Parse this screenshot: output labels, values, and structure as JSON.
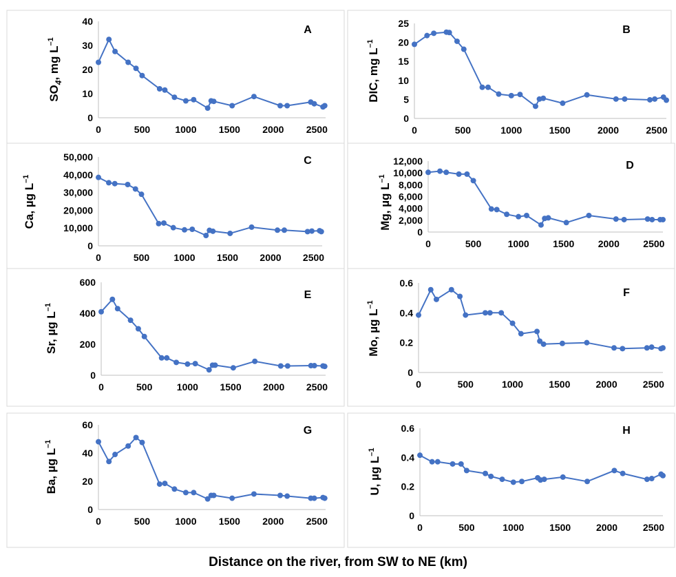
{
  "figure": {
    "x_axis_title": "Distance on the river, from SW to NE (km)"
  },
  "colors": {
    "series": "#4472C4",
    "frame": "#d9d9d9",
    "axis": "#bfbfbf",
    "text": "#000000"
  },
  "chart_data": [
    {
      "type": "line",
      "panel": "A",
      "ylabel": {
        "base": "SO",
        "sub": "4",
        "rest": ", mg L",
        "sup": "–1"
      },
      "ylim": [
        0,
        40
      ],
      "yticks": [
        "0",
        "10",
        "20",
        "30",
        "40"
      ],
      "ytick_values": [
        0,
        10,
        20,
        30,
        40
      ],
      "xlim": [
        0,
        2600
      ],
      "xticks": [
        "0",
        "500",
        "1000",
        "1500",
        "2000",
        "2500"
      ],
      "xtick_values": [
        0,
        500,
        1000,
        1500,
        2000,
        2500
      ],
      "x": [
        0,
        120,
        190,
        340,
        430,
        500,
        700,
        760,
        870,
        1000,
        1090,
        1250,
        1290,
        1320,
        1530,
        1780,
        2080,
        2160,
        2430,
        2470,
        2570,
        2590
      ],
      "y": [
        23,
        32.5,
        27.5,
        23,
        20.5,
        17.5,
        12,
        11.5,
        8.5,
        7,
        7.5,
        4,
        7,
        6.8,
        5,
        8.8,
        5,
        5,
        6.5,
        5.8,
        4.5,
        5
      ]
    },
    {
      "type": "line",
      "panel": "B",
      "ylabel": {
        "base": "DIC, mg L",
        "sup": "–1"
      },
      "ylim": [
        0,
        25
      ],
      "yticks": [
        "0",
        "5",
        "10",
        "15",
        "20",
        "25"
      ],
      "ytick_values": [
        0,
        5,
        10,
        15,
        20,
        25
      ],
      "xlim": [
        0,
        2600
      ],
      "xticks": [
        "0",
        "500",
        "1000",
        "1500",
        "2000",
        "2500"
      ],
      "xtick_values": [
        0,
        500,
        1000,
        1500,
        2000,
        2500
      ],
      "x": [
        0,
        130,
        200,
        330,
        360,
        440,
        510,
        700,
        760,
        870,
        1000,
        1090,
        1250,
        1290,
        1330,
        1530,
        1780,
        2080,
        2170,
        2430,
        2480,
        2570,
        2600
      ],
      "y": [
        19.5,
        21.8,
        22.4,
        22.7,
        22.6,
        20.3,
        18.2,
        8.2,
        8.2,
        6.4,
        6,
        6.3,
        3.2,
        5.1,
        5.3,
        4,
        6.2,
        5.1,
        5.1,
        4.9,
        5.1,
        5.6,
        4.8
      ]
    },
    {
      "type": "line",
      "panel": "C",
      "ylabel": {
        "base": "Ca, µg L",
        "sup": "–1"
      },
      "ylim": [
        0,
        50000
      ],
      "yticks": [
        "0",
        "10,000",
        "20,000",
        "30,000",
        "40,000",
        "50,000"
      ],
      "ytick_values": [
        0,
        10000,
        20000,
        30000,
        40000,
        50000
      ],
      "xlim": [
        0,
        2600
      ],
      "xticks": [
        "0",
        "500",
        "1000",
        "1500",
        "2000",
        "2500"
      ],
      "xtick_values": [
        0,
        500,
        1000,
        1500,
        2000,
        2500
      ],
      "x": [
        0,
        120,
        190,
        340,
        430,
        500,
        700,
        760,
        870,
        1000,
        1090,
        1250,
        1290,
        1330,
        1530,
        1780,
        2080,
        2160,
        2430,
        2480,
        2570,
        2590
      ],
      "y": [
        38500,
        35500,
        35000,
        34500,
        32000,
        29000,
        12500,
        12800,
        10200,
        9000,
        9300,
        5800,
        8700,
        8200,
        7000,
        10500,
        8800,
        8800,
        8000,
        8300,
        8500,
        8000
      ]
    },
    {
      "type": "line",
      "panel": "D",
      "ylabel": {
        "base": "Mg, µg L",
        "sup": "–1"
      },
      "ylim": [
        0,
        12000
      ],
      "yticks": [
        "0",
        "2,000",
        "4,000",
        "6,000",
        "8,000",
        "10,000",
        "12,000"
      ],
      "ytick_values": [
        0,
        2000,
        4000,
        6000,
        8000,
        10000,
        12000
      ],
      "xlim": [
        0,
        2600
      ],
      "xticks": [
        "0",
        "500",
        "1000",
        "1500",
        "2000",
        "2500"
      ],
      "xtick_values": [
        0,
        500,
        1000,
        1500,
        2000,
        2500
      ],
      "x": [
        0,
        130,
        200,
        340,
        430,
        500,
        700,
        760,
        870,
        1000,
        1090,
        1250,
        1290,
        1330,
        1530,
        1780,
        2080,
        2170,
        2430,
        2480,
        2570,
        2600
      ],
      "y": [
        10100,
        10300,
        10100,
        9800,
        9800,
        8700,
        3900,
        3800,
        3000,
        2600,
        2800,
        1200,
        2300,
        2400,
        1600,
        2800,
        2200,
        2100,
        2200,
        2100,
        2100,
        2100
      ]
    },
    {
      "type": "line",
      "panel": "E",
      "ylabel": {
        "base": "Sr, µg L",
        "sup": "–1"
      },
      "ylim": [
        0,
        600
      ],
      "yticks": [
        "0",
        "200",
        "400",
        "600"
      ],
      "ytick_values": [
        0,
        200,
        400,
        600
      ],
      "xlim": [
        0,
        2600
      ],
      "xticks": [
        "0",
        "500",
        "1000",
        "1500",
        "2000",
        "2500"
      ],
      "xtick_values": [
        0,
        500,
        1000,
        1500,
        2000,
        2500
      ],
      "x": [
        0,
        130,
        190,
        340,
        430,
        500,
        700,
        760,
        870,
        1000,
        1090,
        1250,
        1290,
        1320,
        1530,
        1780,
        2080,
        2160,
        2430,
        2470,
        2570,
        2590
      ],
      "y": [
        410,
        490,
        430,
        355,
        300,
        250,
        112,
        112,
        83,
        72,
        75,
        35,
        65,
        65,
        48,
        90,
        60,
        60,
        62,
        62,
        60,
        57
      ]
    },
    {
      "type": "line",
      "panel": "F",
      "ylabel": {
        "base": "Mo, µg L",
        "sup": "–1"
      },
      "ylim": [
        0,
        0.6
      ],
      "yticks": [
        "0",
        "0.2",
        "0.4",
        "0.6"
      ],
      "ytick_values": [
        0,
        0.2,
        0.4,
        0.6
      ],
      "xlim": [
        0,
        2600
      ],
      "xticks": [
        "0",
        "500",
        "1000",
        "1500",
        "2000",
        "2500"
      ],
      "xtick_values": [
        0,
        500,
        1000,
        1500,
        2000,
        2500
      ],
      "x": [
        0,
        130,
        190,
        350,
        440,
        500,
        710,
        760,
        880,
        1000,
        1090,
        1260,
        1290,
        1330,
        1530,
        1790,
        2080,
        2170,
        2430,
        2480,
        2580,
        2600
      ],
      "y": [
        0.385,
        0.555,
        0.49,
        0.555,
        0.51,
        0.385,
        0.4,
        0.4,
        0.4,
        0.33,
        0.26,
        0.275,
        0.21,
        0.19,
        0.195,
        0.2,
        0.165,
        0.16,
        0.165,
        0.17,
        0.16,
        0.165
      ]
    },
    {
      "type": "line",
      "panel": "G",
      "ylabel": {
        "base": "Ba, µg L",
        "sup": "–1"
      },
      "ylim": [
        0,
        60
      ],
      "yticks": [
        "0",
        "20",
        "40",
        "60"
      ],
      "ytick_values": [
        0,
        20,
        40,
        60
      ],
      "xlim": [
        0,
        2600
      ],
      "xticks": [
        "0",
        "500",
        "1000",
        "1500",
        "2000",
        "2500"
      ],
      "xtick_values": [
        0,
        500,
        1000,
        1500,
        2000,
        2500
      ],
      "x": [
        0,
        120,
        190,
        340,
        430,
        500,
        700,
        760,
        870,
        1000,
        1090,
        1250,
        1290,
        1320,
        1530,
        1780,
        2080,
        2160,
        2430,
        2470,
        2570,
        2590
      ],
      "y": [
        48,
        34,
        39,
        45,
        51,
        47.5,
        18,
        18.5,
        14.5,
        12,
        12,
        7.5,
        10,
        10,
        8,
        11,
        10,
        9.5,
        8,
        8,
        8.5,
        8
      ]
    },
    {
      "type": "line",
      "panel": "H",
      "ylabel": {
        "base": "U, µg L",
        "sup": "–1"
      },
      "ylim": [
        0,
        0.6
      ],
      "yticks": [
        "0",
        "0.2",
        "0.4",
        "0.6"
      ],
      "ytick_values": [
        0,
        0.2,
        0.4,
        0.6
      ],
      "xlim": [
        0,
        2600
      ],
      "xticks": [
        "0",
        "500",
        "1000",
        "1500",
        "2000",
        "2500"
      ],
      "xtick_values": [
        0,
        500,
        1000,
        1500,
        2000,
        2500
      ],
      "x": [
        0,
        130,
        190,
        350,
        440,
        500,
        700,
        760,
        880,
        1000,
        1090,
        1260,
        1290,
        1330,
        1530,
        1790,
        2080,
        2170,
        2430,
        2480,
        2580,
        2600
      ],
      "y": [
        0.415,
        0.37,
        0.37,
        0.355,
        0.355,
        0.31,
        0.29,
        0.27,
        0.25,
        0.23,
        0.235,
        0.26,
        0.245,
        0.25,
        0.265,
        0.235,
        0.31,
        0.29,
        0.25,
        0.255,
        0.285,
        0.275
      ]
    }
  ]
}
